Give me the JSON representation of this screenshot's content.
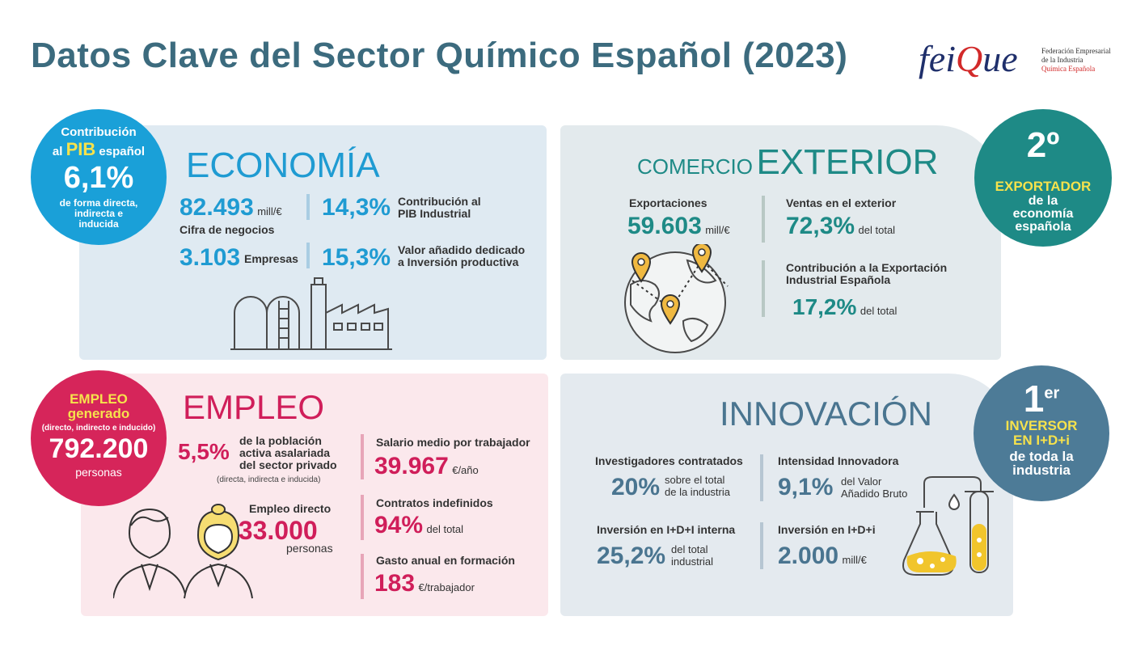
{
  "title": "Datos Clave del Sector Químico Español (2023)",
  "logo": {
    "word_a": "fei",
    "word_q": "Q",
    "word_b": "ue",
    "sub_line1": "Federación Empresarial",
    "sub_line2": "de la Industria",
    "sub_line3": "Química Española"
  },
  "pib_badge": {
    "line1": "Contribución",
    "al": "al",
    "pib": "PIB",
    "espanol": "español",
    "value": "6,1%",
    "desc1": "de forma directa,",
    "desc2": "indirecta e",
    "desc3": "inducida"
  },
  "economia": {
    "title": "ECONOMÍA",
    "cifra_value": "82.493",
    "cifra_unit": "mill/€",
    "cifra_label": "Cifra de negocios",
    "pib_ind_value": "14,3%",
    "pib_ind_label1": "Contribución al",
    "pib_ind_label2": "PIB Industrial",
    "empresas_value": "3.103",
    "empresas_label": "Empresas",
    "inversion_value": "15,3%",
    "inversion_label1": "Valor añadido dedicado",
    "inversion_label2": "a Inversión productiva"
  },
  "comercio": {
    "title_small": "COMERCIO",
    "title_big": "EXTERIOR",
    "export_label": "Exportaciones",
    "export_value": "59.603",
    "export_unit": "mill/€",
    "ventas_label": "Ventas en el exterior",
    "ventas_value": "72,3%",
    "ventas_suffix": "del total",
    "contrib_label1": "Contribución a la Exportación",
    "contrib_label2": "Industrial Española",
    "contrib_value": "17,2%",
    "contrib_suffix": "del total"
  },
  "export_badge": {
    "rank": "2º",
    "label": "EXPORTADOR",
    "desc1": "de la",
    "desc2": "economía",
    "desc3": "española"
  },
  "empleo_badge": {
    "line1": "EMPLEO",
    "line2": "generado",
    "line3": "(directo, indirecto e inducido)",
    "value": "792.200",
    "unit": "personas"
  },
  "empleo": {
    "title": "EMPLEO",
    "pct_value": "5,5%",
    "pct_label1": "de la población",
    "pct_label2": "activa asalariada",
    "pct_label3": "del sector privado",
    "pct_note": "(directa, indirecta e inducida)",
    "directo_label": "Empleo directo",
    "directo_value": "233.000",
    "directo_unit": "personas",
    "salario_label": "Salario medio por trabajador",
    "salario_value": "39.967",
    "salario_unit": "€/año",
    "contratos_label": "Contratos indefinidos",
    "contratos_value": "94%",
    "contratos_suffix": "del total",
    "formacion_label": "Gasto anual en formación",
    "formacion_value": "183",
    "formacion_unit": "€/trabajador"
  },
  "innovacion": {
    "title": "INNOVACIÓN",
    "invest_label": "Investigadores contratados",
    "invest_value": "20%",
    "invest_suffix1": "sobre el total",
    "invest_suffix2": "de la industria",
    "intens_label": "Intensidad Innovadora",
    "intens_value": "9,1%",
    "intens_suffix1": "del Valor",
    "intens_suffix2": "Añadido Bruto",
    "interna_label": "Inversión en I+D+I interna",
    "interna_value": "25,2%",
    "interna_suffix1": "del total",
    "interna_suffix2": "industrial",
    "inv_label": "Inversión en I+D+i",
    "inv_value": "2.000",
    "inv_unit": "mill/€"
  },
  "innov_badge": {
    "rank": "1",
    "rank_sup": "er",
    "line1": "INVERSOR",
    "line2": "EN I+D+i",
    "line3": "de toda la",
    "line4": "industria"
  }
}
